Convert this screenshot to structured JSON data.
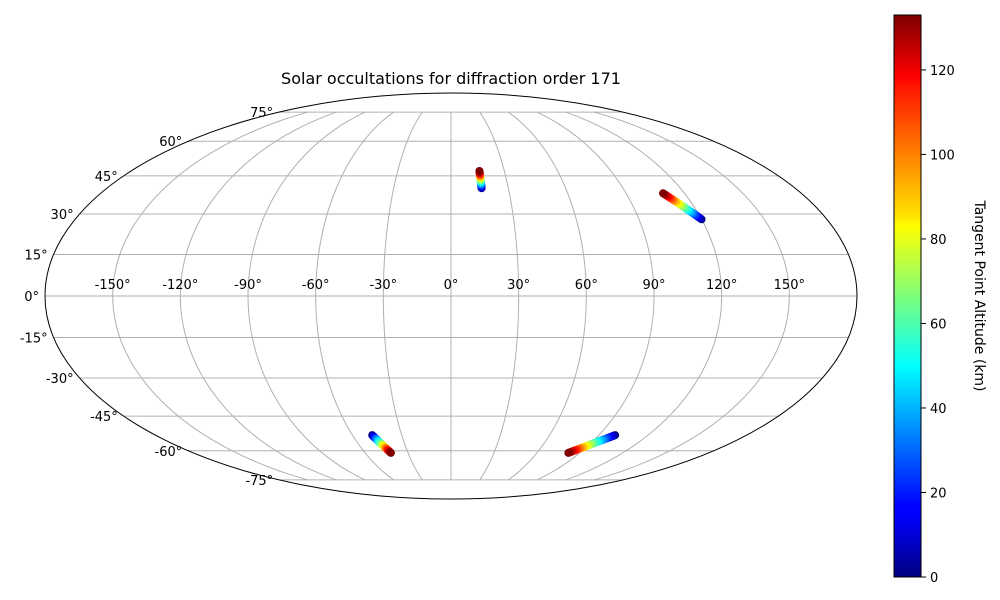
{
  "chart_data": {
    "type": "scatter",
    "projection": "mollweide",
    "title": "Solar occultations for diffraction order 171",
    "xlabel": "",
    "ylabel": "",
    "longitude_ticks": [
      -150,
      -120,
      -90,
      -60,
      -30,
      0,
      30,
      60,
      90,
      120,
      150
    ],
    "longitude_tick_labels": [
      "-150°",
      "-120°",
      "-90°",
      "-60°",
      "-30°",
      "0°",
      "30°",
      "60°",
      "90°",
      "120°",
      "150°"
    ],
    "latitude_ticks": [
      75,
      60,
      45,
      30,
      15,
      0,
      -15,
      -30,
      -45,
      -60,
      -75
    ],
    "latitude_tick_labels": [
      "75°",
      "60°",
      "45°",
      "30°",
      "15°",
      "0°",
      "-15°",
      "-30°",
      "-45°",
      "-60°",
      "-75°"
    ],
    "grid": true,
    "colormap": "jet",
    "colorbar": {
      "label": "Tangent Point Altitude (km)",
      "range": [
        0,
        133
      ],
      "ticks": [
        0,
        20,
        40,
        60,
        80,
        100,
        120
      ],
      "tick_labels": [
        "0",
        "20",
        "40",
        "60",
        "80",
        "100",
        "120"
      ],
      "placement": "right"
    },
    "tracks": [
      {
        "start": {
          "lon": 16,
          "lat": 40,
          "alt": 0
        },
        "end": {
          "lon": 16,
          "lat": 47,
          "alt": 133
        }
      },
      {
        "start": {
          "lon": 120,
          "lat": 28,
          "alt": 0
        },
        "end": {
          "lon": 109,
          "lat": 38,
          "alt": 133
        }
      },
      {
        "start": {
          "lon": -48,
          "lat": -53,
          "alt": 0
        },
        "end": {
          "lon": -42,
          "lat": -61,
          "alt": 133
        }
      },
      {
        "start": {
          "lon": 100,
          "lat": -53,
          "alt": 0
        },
        "end": {
          "lon": 82,
          "lat": -61,
          "alt": 133
        }
      }
    ]
  }
}
